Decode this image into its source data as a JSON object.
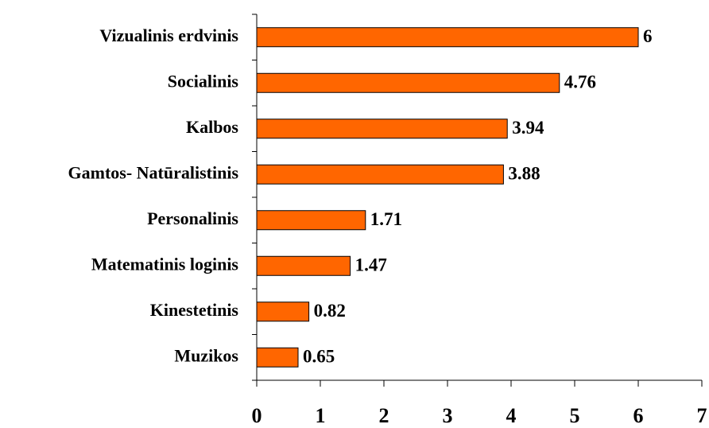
{
  "chart_data": {
    "type": "hbar",
    "categories": [
      "Vizualinis erdvinis",
      "Socialinis",
      "Kalbos",
      "Gamtos- Natūralistinis",
      "Personalinis",
      "Matematinis loginis",
      "Kinestetinis",
      "Muzikos"
    ],
    "values": [
      6,
      4.76,
      3.94,
      3.88,
      1.71,
      1.47,
      0.82,
      0.65
    ],
    "color": "#ff6600",
    "xlim": [
      0,
      7
    ],
    "xticks": [
      0,
      1,
      2,
      3,
      4,
      5,
      6,
      7
    ]
  }
}
